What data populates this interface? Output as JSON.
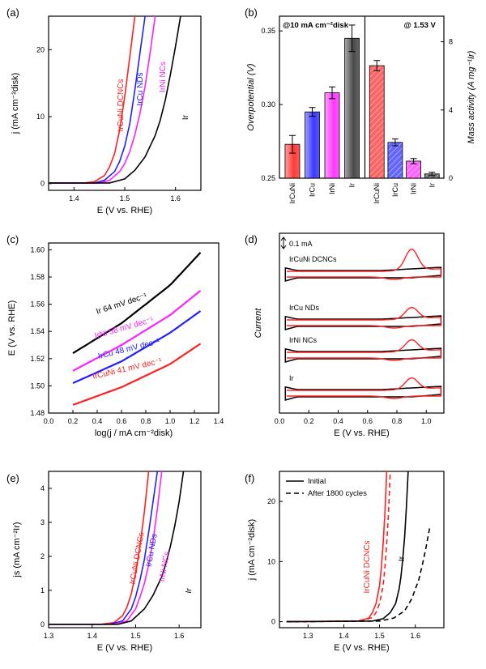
{
  "chart_data": [
    {
      "id": "a",
      "panel_label": "(a)",
      "type": "line",
      "xlabel": "E (V vs. RHE)",
      "ylabel": "j (mA cm⁻²disk)",
      "xlim": [
        1.35,
        1.65
      ],
      "ylim": [
        -1,
        25
      ],
      "xticks": [
        "1.4",
        "1.5",
        "1.6"
      ],
      "yticks": [
        "0",
        "10",
        "20"
      ],
      "series": [
        {
          "name": "IrCuNi DCNCs",
          "color": "#ff2020",
          "x": [
            1.35,
            1.42,
            1.44,
            1.46,
            1.47,
            1.48,
            1.49,
            1.5,
            1.51,
            1.52
          ],
          "y": [
            0.1,
            0.1,
            0.3,
            1.2,
            2.5,
            4.5,
            8,
            13,
            19,
            25
          ]
        },
        {
          "name": "IrCu NDs",
          "color": "#2020ff",
          "x": [
            1.35,
            1.44,
            1.46,
            1.48,
            1.49,
            1.5,
            1.51,
            1.52,
            1.53,
            1.54
          ],
          "y": [
            0.1,
            0.1,
            0.5,
            1.8,
            3.3,
            5.6,
            9,
            14,
            19.5,
            25
          ]
        },
        {
          "name": "IrNi NCs",
          "color": "#ff20ff",
          "x": [
            1.35,
            1.45,
            1.47,
            1.49,
            1.5,
            1.51,
            1.52,
            1.53,
            1.54,
            1.55,
            1.56
          ],
          "y": [
            0.1,
            0.1,
            0.5,
            1.8,
            3,
            4.8,
            7.3,
            10.5,
            14.5,
            19.5,
            25
          ]
        },
        {
          "name": "Ir",
          "color": "#000000",
          "x": [
            1.35,
            1.47,
            1.5,
            1.52,
            1.54,
            1.56,
            1.57,
            1.58,
            1.59,
            1.6,
            1.61
          ],
          "y": [
            0.1,
            0.1,
            0.7,
            2,
            4,
            7.2,
            9.5,
            12.5,
            16.3,
            20.5,
            25
          ]
        }
      ]
    },
    {
      "id": "b",
      "panel_label": "(b)",
      "type": "bar",
      "left_header": "@10 mA cm⁻²disk",
      "right_header": "@ 1.53 V",
      "left_ylabel": "Overpotential (V)",
      "right_ylabel": "Mass activity (A mg⁻¹Ir)",
      "left_ylim": [
        0.25,
        0.36
      ],
      "right_ylim": [
        0,
        9.5
      ],
      "left_yticks": [
        "0.25",
        "0.30",
        "0.35"
      ],
      "right_yticks": [
        "0",
        "4",
        "8"
      ],
      "categories": [
        "IrCuNi",
        "IrCu",
        "IrNi",
        "Ir",
        "IrCuNi",
        "IrCu",
        "IrNi",
        "Ir"
      ],
      "overpotential": [
        0.273,
        0.295,
        0.308,
        0.345
      ],
      "overpotential_err": [
        0.006,
        0.003,
        0.004,
        0.009
      ],
      "mass_activity": [
        6.6,
        2.1,
        1.0,
        0.25
      ],
      "mass_activity_err": [
        0.3,
        0.2,
        0.15,
        0.1
      ],
      "colors": [
        "#ff3030",
        "#3030ff",
        "#ff30ff",
        "#404040"
      ]
    },
    {
      "id": "c",
      "panel_label": "(c)",
      "type": "line",
      "xlabel": "log(j / mA cm⁻²disk)",
      "ylabel": "E (V vs. RHE)",
      "xlim": [
        0.0,
        1.4
      ],
      "ylim": [
        1.48,
        1.605
      ],
      "xticks": [
        "0.0",
        "0.2",
        "0.4",
        "0.6",
        "0.8",
        "1.0",
        "1.2",
        "1.4"
      ],
      "yticks": [
        "1.48",
        "1.50",
        "1.52",
        "1.54",
        "1.56",
        "1.58",
        "1.60"
      ],
      "series": [
        {
          "name": "Ir 64 mV dec⁻¹",
          "color": "#000000",
          "x": [
            0.2,
            0.6,
            1.0,
            1.25
          ],
          "y": [
            1.524,
            1.546,
            1.574,
            1.598
          ]
        },
        {
          "name": "IrNi 58 mV dec⁻¹",
          "color": "#ff20ff",
          "x": [
            0.2,
            0.6,
            1.0,
            1.25
          ],
          "y": [
            1.511,
            1.53,
            1.552,
            1.57
          ]
        },
        {
          "name": "IrCu 48 mV dec⁻¹",
          "color": "#2020ff",
          "x": [
            0.2,
            0.6,
            1.0,
            1.25
          ],
          "y": [
            1.502,
            1.518,
            1.539,
            1.555
          ]
        },
        {
          "name": "IrCuNi 41 mV dec⁻¹",
          "color": "#ff2020",
          "x": [
            0.2,
            0.6,
            1.0,
            1.25
          ],
          "y": [
            1.486,
            1.499,
            1.516,
            1.531
          ]
        }
      ]
    },
    {
      "id": "d",
      "panel_label": "(d)",
      "type": "line",
      "xlabel": "E (V vs. RHE)",
      "ylabel": "Current",
      "xlim": [
        0.0,
        1.12
      ],
      "xticks": [
        "0.0",
        "0.2",
        "0.4",
        "0.6",
        "0.8",
        "1.0"
      ],
      "scale_bar_label": "0.1 mA",
      "traces": [
        "IrCuNi DCNCs",
        "IrCu NDs",
        "IrNi NCs",
        "Ir"
      ]
    },
    {
      "id": "e",
      "panel_label": "(e)",
      "type": "line",
      "xlabel": "E (V vs. RHE)",
      "ylabel": "js (mA cm⁻²Ir)",
      "xlim": [
        1.3,
        1.65
      ],
      "ylim": [
        -0.1,
        4.5
      ],
      "xticks": [
        "1.3",
        "1.4",
        "1.5",
        "1.6"
      ],
      "yticks": [
        "0",
        "1",
        "2",
        "3",
        "4"
      ],
      "series": [
        {
          "name": "IrCuNi DCNCs",
          "color": "#ff2020",
          "x": [
            1.3,
            1.42,
            1.45,
            1.47,
            1.48,
            1.49,
            1.5,
            1.51,
            1.52,
            1.53
          ],
          "y": [
            0,
            0,
            0.05,
            0.25,
            0.5,
            0.9,
            1.5,
            2.3,
            3.3,
            4.5
          ]
        },
        {
          "name": "IrCu NDs",
          "color": "#2020ff",
          "x": [
            1.3,
            1.44,
            1.47,
            1.49,
            1.5,
            1.51,
            1.52,
            1.53,
            1.54,
            1.55
          ],
          "y": [
            0,
            0,
            0.1,
            0.45,
            0.8,
            1.3,
            1.9,
            2.7,
            3.6,
            4.5
          ]
        },
        {
          "name": "IrNi NCs",
          "color": "#ff20ff",
          "x": [
            1.3,
            1.45,
            1.48,
            1.5,
            1.51,
            1.52,
            1.53,
            1.54,
            1.55,
            1.56
          ],
          "y": [
            0,
            0,
            0.1,
            0.45,
            0.8,
            1.2,
            1.75,
            2.45,
            3.4,
            4.5
          ]
        },
        {
          "name": "Ir",
          "color": "#000000",
          "x": [
            1.3,
            1.46,
            1.49,
            1.52,
            1.54,
            1.56,
            1.57,
            1.58,
            1.59,
            1.6,
            1.61
          ],
          "y": [
            0,
            0,
            0.1,
            0.45,
            0.85,
            1.4,
            1.8,
            2.3,
            2.9,
            3.6,
            4.5
          ]
        }
      ]
    },
    {
      "id": "f",
      "panel_label": "(f)",
      "type": "line",
      "xlabel": "E (V vs. RHE)",
      "ylabel": "j (mA cm⁻²disk)",
      "xlim": [
        1.22,
        1.68
      ],
      "ylim": [
        -1,
        25
      ],
      "xticks": [
        "1.3",
        "1.4",
        "1.5",
        "1.6"
      ],
      "yticks": [
        "0",
        "10",
        "20"
      ],
      "legend": [
        "Initial",
        "After 1800 cycles"
      ],
      "curve_labels": [
        "IrCuNi DCNCs",
        "Ir"
      ],
      "series": [
        {
          "name": "IrCuNi DCNCs initial",
          "color": "#ff2020",
          "dash": false,
          "x": [
            1.24,
            1.44,
            1.47,
            1.48,
            1.49,
            1.5,
            1.505,
            1.51,
            1.515,
            1.52
          ],
          "y": [
            0,
            0.1,
            0.6,
            1.5,
            3,
            6,
            9,
            13,
            18,
            25
          ]
        },
        {
          "name": "IrCuNi DCNCs after",
          "color": "#ff2020",
          "dash": true,
          "x": [
            1.24,
            1.45,
            1.48,
            1.49,
            1.5,
            1.51,
            1.515,
            1.52,
            1.525,
            1.53
          ],
          "y": [
            0,
            0.1,
            0.7,
            1.5,
            3,
            6,
            9,
            13,
            18,
            25
          ]
        },
        {
          "name": "Ir initial",
          "color": "#000000",
          "dash": false,
          "x": [
            1.24,
            1.48,
            1.51,
            1.53,
            1.545,
            1.555,
            1.56,
            1.565,
            1.57,
            1.575,
            1.58
          ],
          "y": [
            0,
            0.1,
            0.5,
            1.5,
            3,
            5.5,
            7.5,
            10.5,
            14,
            19,
            25
          ]
        },
        {
          "name": "Ir after",
          "color": "#000000",
          "dash": true,
          "x": [
            1.24,
            1.5,
            1.54,
            1.57,
            1.59,
            1.61,
            1.62,
            1.63,
            1.64
          ],
          "y": [
            0,
            0.1,
            0.6,
            1.8,
            3.8,
            7,
            9.5,
            12.3,
            15.5
          ]
        }
      ]
    }
  ]
}
